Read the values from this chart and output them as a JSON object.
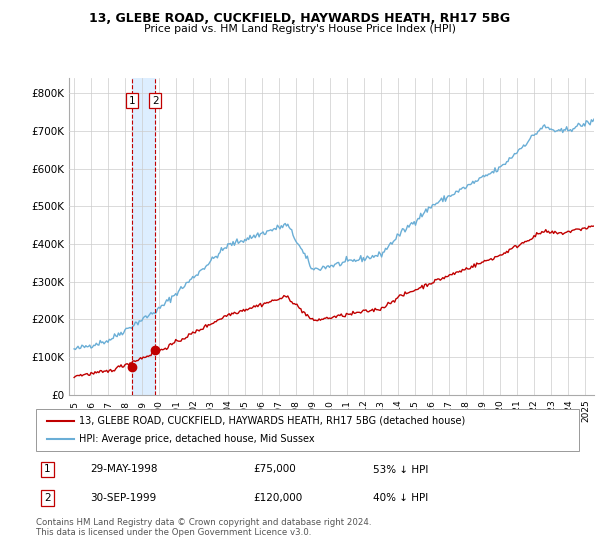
{
  "title": "13, GLEBE ROAD, CUCKFIELD, HAYWARDS HEATH, RH17 5BG",
  "subtitle": "Price paid vs. HM Land Registry's House Price Index (HPI)",
  "legend_line1": "13, GLEBE ROAD, CUCKFIELD, HAYWARDS HEATH, RH17 5BG (detached house)",
  "legend_line2": "HPI: Average price, detached house, Mid Sussex",
  "transaction1_date_label": "29-MAY-1998",
  "transaction1_price_label": "£75,000",
  "transaction1_hpi_label": "53% ↓ HPI",
  "transaction1_year": 1998.38,
  "transaction1_value": 75000,
  "transaction2_date_label": "30-SEP-1999",
  "transaction2_price_label": "£120,000",
  "transaction2_hpi_label": "40% ↓ HPI",
  "transaction2_year": 1999.75,
  "transaction2_value": 120000,
  "footer": "Contains HM Land Registry data © Crown copyright and database right 2024.\nThis data is licensed under the Open Government Licence v3.0.",
  "hpi_color": "#6aaed6",
  "price_color": "#c00000",
  "marker_color": "#c00000",
  "band_color": "#ddeeff",
  "background_color": "#ffffff",
  "grid_color": "#cccccc",
  "ylim": [
    0,
    840000
  ],
  "yticks": [
    0,
    100000,
    200000,
    300000,
    400000,
    500000,
    600000,
    700000,
    800000
  ],
  "ytick_labels": [
    "£0",
    "£100K",
    "£200K",
    "£300K",
    "£400K",
    "£500K",
    "£600K",
    "£700K",
    "£800K"
  ],
  "xlim_start": 1994.7,
  "xlim_end": 2025.5
}
